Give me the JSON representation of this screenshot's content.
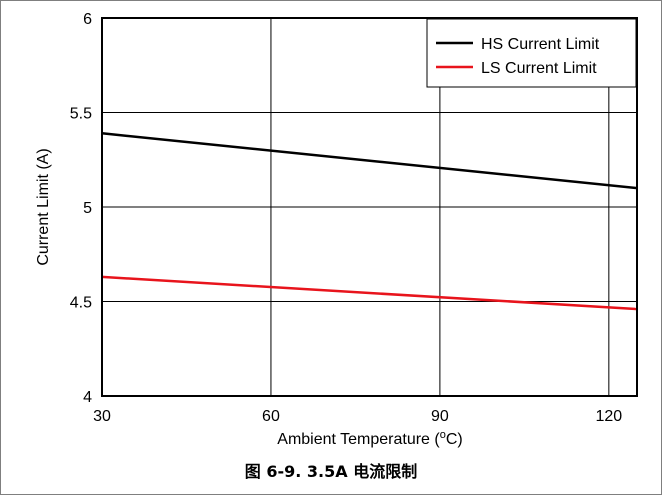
{
  "chart_data": {
    "type": "line",
    "xlabel_main": "Ambient Temperature (",
    "xlabel_sup": "o",
    "xlabel_unit": "C)",
    "ylabel": "Current Limit (A)",
    "xlim": [
      30,
      125
    ],
    "ylim": [
      4,
      6
    ],
    "x_ticks": [
      30,
      60,
      90,
      120
    ],
    "y_ticks": [
      4,
      4.5,
      5,
      5.5,
      6
    ],
    "y_tick_labels": [
      "4",
      "4.5",
      "5",
      "5.5",
      "6"
    ],
    "grid": true,
    "legend_position": "top-right",
    "series": [
      {
        "name": "HS Current Limit",
        "color": "#000000",
        "x": [
          30,
          125
        ],
        "y": [
          5.39,
          5.1
        ]
      },
      {
        "name": "LS Current Limit",
        "color": "#e8141c",
        "x": [
          30,
          125
        ],
        "y": [
          4.63,
          4.46
        ]
      }
    ]
  },
  "caption": "图 6-9. 3.5A 电流限制"
}
